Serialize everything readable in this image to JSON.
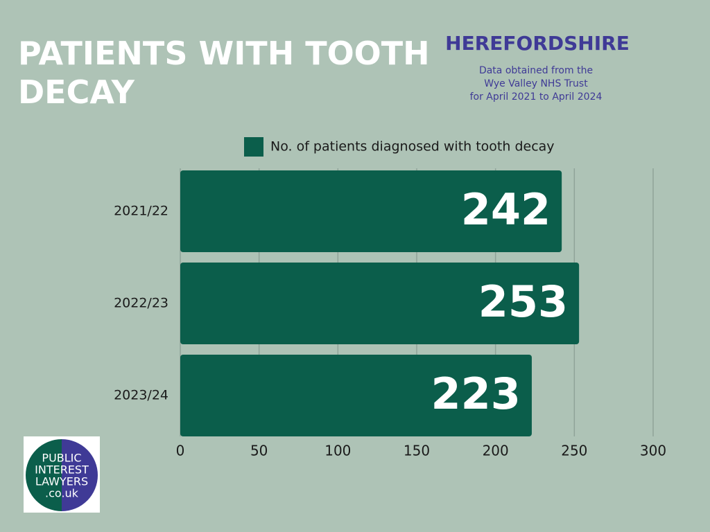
{
  "chart_data": {
    "type": "bar",
    "orientation": "horizontal",
    "title": "PATIENTS WITH TOOTH DECAY",
    "region": "HEREFORDSHIRE",
    "subtitle": [
      "Data obtained from the",
      "Wye Valley NHS Trust",
      "for April 2021 to April 2024"
    ],
    "categories": [
      "2021/22",
      "2022/23",
      "2023/24"
    ],
    "series": [
      {
        "name": "No. of patients diagnosed with tooth decay",
        "color": "#0b5e4b",
        "values": [
          242,
          253,
          223
        ]
      }
    ],
    "xlim": [
      0,
      300
    ],
    "xticks": [
      0,
      50,
      100,
      150,
      200,
      250,
      300
    ],
    "grid": true,
    "legend": "top"
  },
  "logo": {
    "lines": [
      "PUBLIC",
      "INTEREST",
      "LAWYERS",
      ".co.uk"
    ]
  }
}
